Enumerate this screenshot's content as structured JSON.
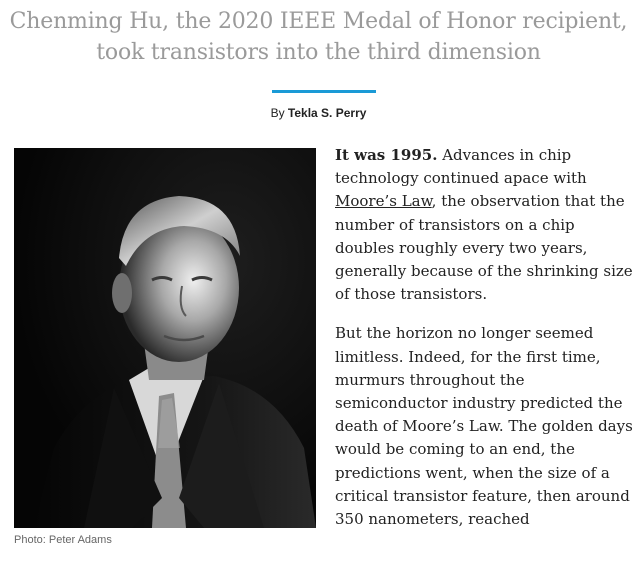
{
  "article": {
    "headline": "Chenming Hu, the 2020 IEEE Medal of Honor recipient, took transistors into the third dimension",
    "byline_prefix": "By",
    "byline_author": "Tekla S. Perry",
    "photo_caption": "Photo: Peter Adams",
    "paragraph1": {
      "lead": "It was 1995.",
      "before_link": "Advances in chip technology continued apace with",
      "link_text": "Moore’s Law",
      "after_link": ", the observation that the number of transistors on a chip doubles roughly every two years, generally because of the shrinking size of those transistors."
    },
    "paragraph2": "But the horizon no longer seemed limitless. Indeed, for the first time, murmurs throughout the semiconductor industry predicted the death of Moore’s Law. The golden days would be coming to an end, the predictions went, when the size of a critical transistor feature, then around 350 nanometers, reached"
  },
  "colors": {
    "accent_rule": "#1a9ad6",
    "headline": "#9a9a9a",
    "body_text": "#222222",
    "caption": "#666666"
  }
}
